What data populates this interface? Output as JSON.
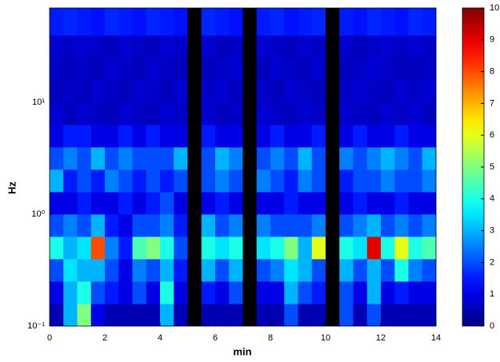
{
  "chart_data": {
    "type": "heatmap",
    "xlabel": "min",
    "ylabel": "Hz",
    "x_bins": [
      0,
      0.5,
      1,
      1.5,
      2,
      2.5,
      3,
      3.5,
      4,
      4.5,
      5,
      5.5,
      6,
      6.5,
      7,
      7.5,
      8,
      8.5,
      9,
      9.5,
      10,
      10.5,
      11,
      11.5,
      12,
      12.5,
      13,
      13.5,
      14
    ],
    "y_bins": [
      0.1,
      0.158,
      0.251,
      0.398,
      0.631,
      1,
      1.585,
      2.512,
      3.981,
      6.31,
      10,
      15.85,
      25.12,
      39.81,
      70
    ],
    "xlim": [
      0,
      14
    ],
    "xticks": [
      0,
      2,
      4,
      6,
      8,
      10,
      12,
      14
    ],
    "ylim": [
      0.1,
      70
    ],
    "ylog": true,
    "yticks": [
      {
        "value": 0.1,
        "label": "10⁻¹"
      },
      {
        "value": 1,
        "label": "10⁰"
      },
      {
        "value": 10,
        "label": "10¹"
      }
    ],
    "zlim": [
      0,
      10
    ],
    "zticks": [
      0,
      1,
      2,
      3,
      4,
      5,
      6,
      7,
      8,
      9,
      10
    ],
    "colormap": "jet",
    "gap_color": "#000000",
    "values": [
      [
        0.5,
        3,
        5,
        1,
        0.5,
        0.5,
        0.5,
        0.5,
        3,
        0.5,
        null,
        0.5,
        0.5,
        0.5,
        null,
        0.5,
        0.5,
        2,
        0.5,
        0.5,
        null,
        2,
        0.5,
        2,
        0.5,
        0.5,
        0.5,
        0.5
      ],
      [
        1,
        3,
        4,
        2,
        1.5,
        1,
        2,
        1,
        4,
        1,
        null,
        1.5,
        1,
        2,
        null,
        1,
        1,
        3,
        2,
        1.5,
        null,
        2,
        1,
        3,
        1,
        1.5,
        1,
        1
      ],
      [
        2,
        3.5,
        3,
        3,
        2,
        1,
        2.5,
        2,
        3,
        1.5,
        null,
        3,
        2,
        3,
        null,
        2,
        2.5,
        3.5,
        3,
        2,
        null,
        3,
        2,
        3,
        2,
        4,
        2.5,
        2
      ],
      [
        4,
        3,
        3.5,
        8,
        2.5,
        1.5,
        4.5,
        5,
        4,
        2,
        null,
        4,
        3.5,
        4,
        null,
        3.5,
        4,
        5,
        3,
        6,
        null,
        4,
        3.5,
        9,
        4,
        6,
        4,
        4.5
      ],
      [
        2,
        2.5,
        2,
        3,
        1.5,
        1,
        2,
        2,
        2.5,
        1.5,
        null,
        3,
        2,
        2.5,
        null,
        2.5,
        2,
        2,
        2,
        2.5,
        null,
        2,
        2.5,
        3,
        2,
        2.5,
        2,
        2.5
      ],
      [
        1,
        1,
        1.5,
        1,
        1,
        1.5,
        1,
        1.5,
        2,
        1,
        null,
        1,
        1.5,
        1,
        null,
        1,
        1,
        1.5,
        1,
        1,
        null,
        1,
        1.5,
        1,
        1,
        1.5,
        1,
        1
      ],
      [
        3,
        1.5,
        2,
        1.5,
        2.5,
        2,
        1.5,
        2,
        1.5,
        2,
        null,
        2,
        2.5,
        2,
        null,
        2.5,
        2,
        1.5,
        2.5,
        2,
        null,
        1.5,
        2,
        2,
        2.5,
        2,
        2,
        2.5
      ],
      [
        2,
        2.5,
        2,
        3,
        2,
        2.5,
        2,
        2,
        2,
        3,
        null,
        2,
        3,
        2.5,
        null,
        2,
        2.5,
        2,
        3,
        2,
        null,
        2.5,
        2,
        2.5,
        3,
        2.5,
        2,
        3
      ],
      [
        1,
        1.5,
        1.5,
        1,
        1,
        1.5,
        1,
        1.5,
        1,
        1,
        null,
        1.5,
        1,
        1,
        null,
        1,
        1.5,
        1,
        1,
        1.5,
        null,
        1,
        1.5,
        1,
        1,
        1.5,
        1,
        1
      ],
      [
        0.8,
        0.6,
        0.8,
        0.7,
        0.6,
        0.8,
        0.7,
        0.6,
        0.8,
        0.7,
        null,
        0.8,
        0.6,
        0.7,
        null,
        0.8,
        0.7,
        0.6,
        0.8,
        0.7,
        null,
        0.8,
        0.7,
        0.6,
        0.8,
        0.7,
        0.8,
        0.6
      ],
      [
        0.6,
        0.7,
        0.6,
        0.8,
        0.7,
        0.6,
        0.8,
        0.7,
        0.6,
        0.8,
        null,
        0.7,
        0.8,
        0.6,
        null,
        0.7,
        0.6,
        0.8,
        0.7,
        0.6,
        null,
        0.7,
        0.8,
        0.7,
        0.6,
        0.8,
        0.7,
        0.8
      ],
      [
        0.7,
        0.6,
        0.7,
        0.6,
        0.8,
        0.7,
        0.6,
        0.8,
        0.7,
        0.6,
        null,
        0.6,
        0.7,
        0.8,
        null,
        0.6,
        0.8,
        0.7,
        0.6,
        0.8,
        null,
        0.6,
        0.7,
        0.8,
        0.7,
        0.6,
        0.6,
        0.7
      ],
      [
        0.8,
        0.7,
        0.8,
        0.7,
        0.6,
        0.8,
        0.7,
        0.6,
        0.8,
        0.7,
        null,
        0.8,
        0.6,
        0.7,
        null,
        0.8,
        0.7,
        0.6,
        0.8,
        0.7,
        null,
        0.8,
        0.6,
        0.7,
        0.8,
        0.7,
        0.8,
        0.7
      ],
      [
        1.5,
        1.6,
        1.5,
        1.4,
        1.6,
        1.5,
        1.4,
        1.6,
        1.5,
        1.4,
        null,
        1.6,
        1.5,
        1.4,
        null,
        1.5,
        1.6,
        1.4,
        1.5,
        1.6,
        null,
        1.5,
        1.4,
        1.6,
        1.5,
        1.4,
        1.6,
        1.5
      ]
    ]
  }
}
